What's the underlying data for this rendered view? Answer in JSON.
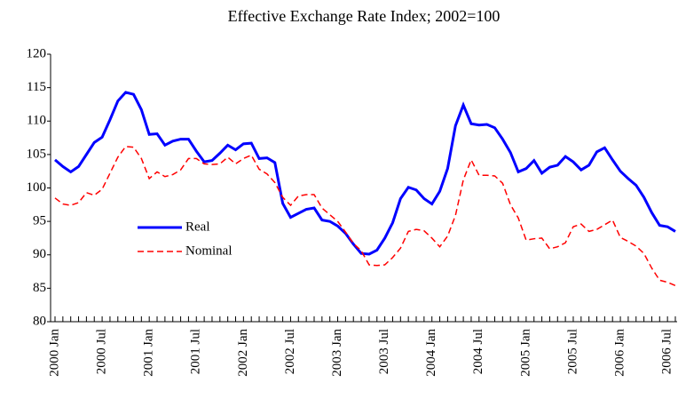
{
  "chart_data": {
    "type": "line",
    "title": "Effective Exchange Rate Index; 2002=100",
    "categories": [
      "2000 Jan",
      null,
      null,
      null,
      null,
      null,
      "2000 Jul",
      null,
      null,
      null,
      null,
      null,
      "2001 Jan",
      null,
      null,
      null,
      null,
      null,
      "2001 Jul",
      null,
      null,
      null,
      null,
      null,
      "2002 Jan",
      null,
      null,
      null,
      null,
      null,
      "2002 Jul",
      null,
      null,
      null,
      null,
      null,
      "2003 Jan",
      null,
      null,
      null,
      null,
      null,
      "2003 Jul",
      null,
      null,
      null,
      null,
      null,
      "2004 Jan",
      null,
      null,
      null,
      null,
      null,
      "2004 Jul",
      null,
      null,
      null,
      null,
      null,
      "2005 Jan",
      null,
      null,
      null,
      null,
      null,
      "2005 Jul",
      null,
      null,
      null,
      null,
      null,
      "2006 Jan",
      null,
      null,
      null,
      null,
      null,
      "2006 Jul",
      null
    ],
    "series": [
      {
        "name": "Real",
        "color": "#0000ff",
        "values": [
          104.2,
          103.2,
          102.4,
          103.2,
          105,
          106.8,
          107.6,
          110.2,
          113,
          114.3,
          114,
          111.7,
          108,
          108.1,
          106.4,
          107,
          107.3,
          107.3,
          105.5,
          103.9,
          104.1,
          105.2,
          106.4,
          105.7,
          106.6,
          106.7,
          104.4,
          104.5,
          103.8,
          97.7,
          95.6,
          96.2,
          96.8,
          97,
          95.2,
          95,
          94.3,
          93.2,
          91.6,
          90.2,
          90.1,
          90.7,
          92.5,
          94.8,
          98.4,
          100.1,
          99.7,
          98.4,
          97.6,
          99.5,
          102.9,
          109.3,
          112.4,
          109.6,
          109.4,
          109.5,
          109,
          107.3,
          105.3,
          102.4,
          102.9,
          104.1,
          102.2,
          103.1,
          103.4,
          104.7,
          103.9,
          102.7,
          103.4,
          105.4,
          106,
          104.2,
          102.5,
          101.4,
          100.4,
          98.6,
          96.3,
          94.4,
          94.2,
          93.5
        ]
      },
      {
        "name": "Nominal",
        "color": "#ff0000",
        "dashed": true,
        "values": [
          98.5,
          97.6,
          97.4,
          97.8,
          99.3,
          98.9,
          99.8,
          102.2,
          104.6,
          106.2,
          106.1,
          104.4,
          101.4,
          102.4,
          101.7,
          102,
          102.7,
          104.4,
          104.4,
          103.6,
          103.5,
          103.6,
          104.6,
          103.6,
          104.4,
          104.9,
          102.8,
          102.1,
          100.8,
          98.6,
          97.4,
          98.8,
          99,
          99,
          97,
          96,
          95,
          93.4,
          91.7,
          90.6,
          88.5,
          88.4,
          88.5,
          89.6,
          91,
          93.5,
          93.8,
          93.6,
          92.5,
          91.2,
          92.8,
          95.9,
          101.2,
          104.2,
          101.9,
          101.9,
          101.8,
          100.7,
          97.5,
          95.5,
          92.2,
          92.4,
          92.5,
          90.9,
          91.2,
          91.8,
          94.2,
          94.6,
          93.5,
          93.8,
          94.5,
          95.2,
          92.6,
          92,
          91.3,
          90.2,
          88,
          86.2,
          85.9,
          85.4
        ]
      }
    ],
    "ylim": [
      80,
      120
    ],
    "yticks": [
      80,
      85,
      90,
      95,
      100,
      105,
      110,
      115,
      120
    ]
  }
}
